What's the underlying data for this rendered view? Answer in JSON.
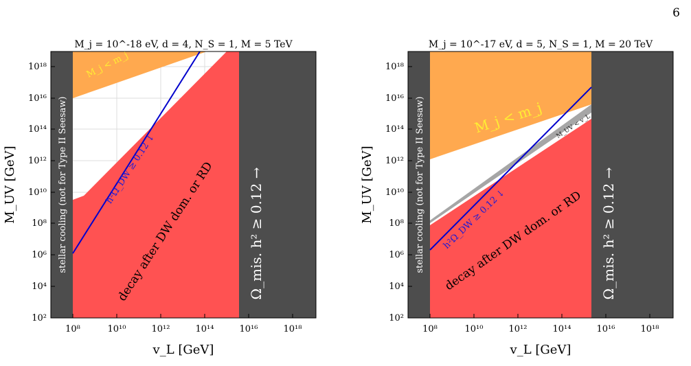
{
  "page_number": "6",
  "colors": {
    "dark_band": "#4d4d4d",
    "red_region": "#ff5252",
    "orange_region": "#ffa94f",
    "gray_band": "#a6a6a6",
    "blue_line": "#0000cc",
    "grid": "#dcdcdc",
    "orange_text": "#ffee33",
    "line_label_text": "#1a1ad6"
  },
  "chart_data": [
    {
      "type": "area",
      "title": "M_j = 10^-18 eV, d = 4, N_S = 1, M = 5 TeV",
      "xlabel": "v_L [GeV]",
      "ylabel": "M_UV [GeV]",
      "xscale": "log",
      "yscale": "log",
      "xlim_log10": [
        7,
        19.1
      ],
      "ylim_log10": [
        2,
        19
      ],
      "xticks": [
        "10^8",
        "10^10",
        "10^12",
        "10^14",
        "10^16",
        "10^18"
      ],
      "yticks": [
        "10^2",
        "10^4",
        "10^6",
        "10^8",
        "10^10",
        "10^12",
        "10^14",
        "10^16",
        "10^18"
      ],
      "grid": true,
      "regions": [
        {
          "name": "stellar cooling (not for Type II Seesaw)",
          "x_log10": [
            7,
            8
          ]
        },
        {
          "name": "Ω_mis. h^2 ≥ 0.12 →",
          "x_log10": [
            15.4,
            19.1
          ]
        },
        {
          "name": "decay after DW dom. or RD",
          "boundary_log10": [
            [
              8,
              9.5
            ],
            [
              8.5,
              9.7
            ],
            [
              14.5,
              19
            ],
            [
              15.4,
              19
            ]
          ]
        },
        {
          "name": "M_j < m_j",
          "lower_boundary_log10": [
            [
              8,
              16.2
            ],
            [
              12.2,
              19
            ]
          ]
        }
      ],
      "line": {
        "name": "h^2 Ω_DW ≥ 0.12 ↓",
        "points_log10": [
          [
            8,
            6.1
          ],
          [
            13.8,
            19
          ]
        ]
      }
    },
    {
      "type": "area",
      "title": "M_j = 10^-17 eV, d = 5, N_S = 1, M = 20 TeV",
      "xlabel": "v_L [GeV]",
      "ylabel": "M_UV [GeV]",
      "xscale": "log",
      "yscale": "log",
      "xlim_log10": [
        7,
        19.1
      ],
      "ylim_log10": [
        2,
        19
      ],
      "xticks": [
        "10^8",
        "10^10",
        "10^12",
        "10^14",
        "10^16",
        "10^18"
      ],
      "yticks": [
        "10^2",
        "10^4",
        "10^6",
        "10^8",
        "10^10",
        "10^12",
        "10^14",
        "10^16",
        "10^18"
      ],
      "grid": false,
      "regions": [
        {
          "name": "stellar cooling (not for Type II Seesaw)",
          "x_log10": [
            7,
            8
          ]
        },
        {
          "name": "Ω_mis. h^2 ≥ 0.12 →",
          "x_log10": [
            15.2,
            19.1
          ]
        },
        {
          "name": "decay after DW dom. or RD",
          "upper_boundary_log10": [
            [
              8,
              8.0
            ],
            [
              15.2,
              14.7
            ]
          ]
        },
        {
          "name": "M_UV < v_L",
          "upper_boundary_log10": [
            [
              8,
              8.3
            ],
            [
              15.2,
              15.3
            ]
          ]
        },
        {
          "name": "M_j < m_j",
          "lower_boundary_log10": [
            [
              8,
              12.3
            ],
            [
              15.2,
              15.3
            ]
          ]
        }
      ],
      "line": {
        "name": "h^2 Ω_DW ≥ 0.12 ↓",
        "points_log10": [
          [
            8,
            6.4
          ],
          [
            15.2,
            16.2
          ]
        ]
      }
    }
  ],
  "panels": [
    {
      "title": "M_j = 10^-18 eV,  d = 4,  N_S = 1,  M = 5 TeV",
      "xlabel": "v_L [GeV]",
      "ylabel": "M_UV [GeV]",
      "stellar_label": "stellar cooling (not for Type II Seesaw)",
      "mis_label": "Ω_mis. h² ≥ 0.12 →",
      "decay_label": "decay after DW dom. or RD",
      "orange_label": "M_j < m_j",
      "line_label": "h²Ω_DW ≥ 0.12 ↓",
      "xticks": [
        "10⁸",
        "10¹⁰",
        "10¹²",
        "10¹⁴",
        "10¹⁶",
        "10¹⁸"
      ],
      "yticks": [
        "10²",
        "10⁴",
        "10⁶",
        "10⁸",
        "10¹⁰",
        "10¹²",
        "10¹⁴",
        "10¹⁶",
        "10¹⁸"
      ]
    },
    {
      "title": "M_j = 10^-17 eV,  d = 5,  N_S = 1,  M = 20 TeV",
      "xlabel": "v_L [GeV]",
      "ylabel": "M_UV [GeV]",
      "stellar_label": "stellar cooling (not for Type II Seesaw)",
      "mis_label": "Ω_mis. h² ≥ 0.12 →",
      "decay_label": "decay after DW dom. or RD",
      "orange_label": "M_j < m_j",
      "gray_label": "M_UV < v_L",
      "line_label": "h²Ω_DW ≥ 0.12 ↓",
      "xticks": [
        "10⁸",
        "10¹⁰",
        "10¹²",
        "10¹⁴",
        "10¹⁶",
        "10¹⁸"
      ],
      "yticks": [
        "10²",
        "10⁴",
        "10⁶",
        "10⁸",
        "10¹⁰",
        "10¹²",
        "10¹⁴",
        "10¹⁶",
        "10¹⁸"
      ]
    }
  ]
}
